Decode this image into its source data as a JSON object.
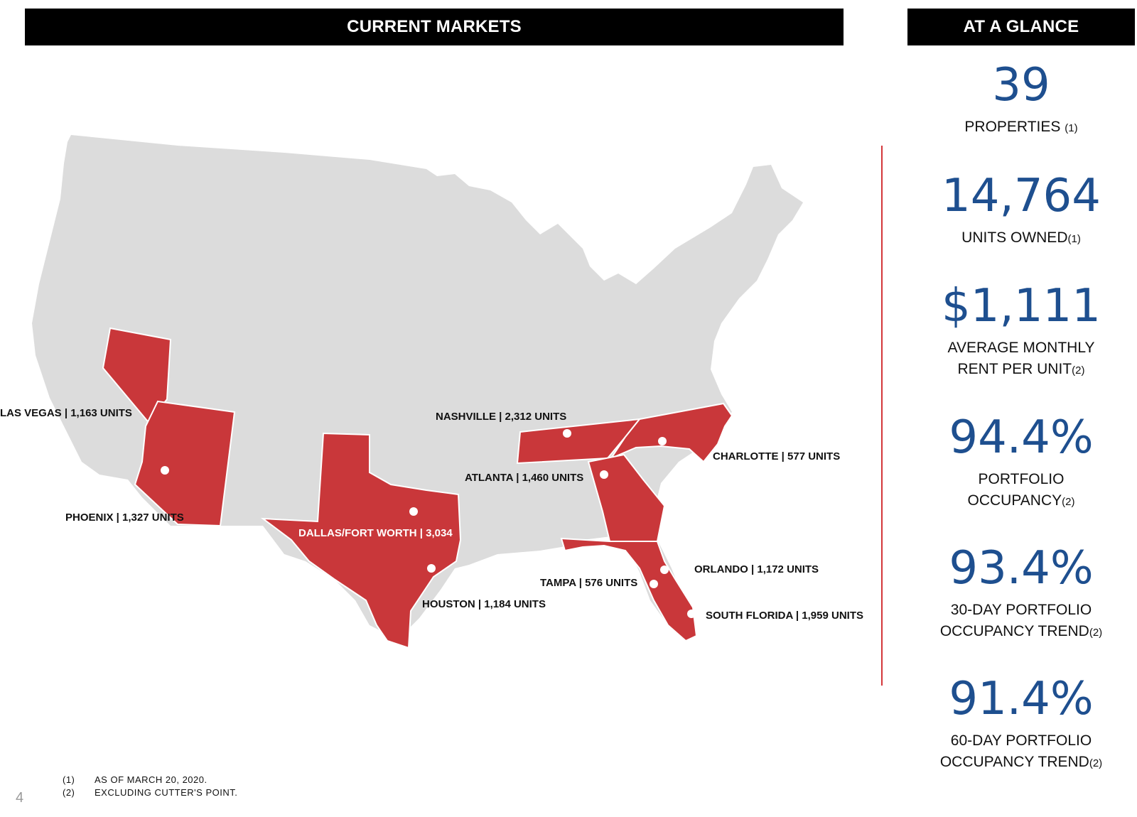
{
  "headers": {
    "markets": "CURRENT MARKETS",
    "glance": "AT A GLANCE"
  },
  "colors": {
    "highlight_state": "#c9373a",
    "base_map": "#dcdcdc",
    "stat_value": "#1e4f8f",
    "divider": "#d4363a"
  },
  "markets": [
    {
      "name": "LAS VEGAS",
      "text": "LAS VEGAS | 1,163 UNITS"
    },
    {
      "name": "PHOENIX",
      "text": "PHOENIX | 1,327 UNITS"
    },
    {
      "name": "DALLAS/FORT WORTH",
      "text": "DALLAS/FORT WORTH | 3,034"
    },
    {
      "name": "HOUSTON",
      "text": "HOUSTON | 1,184 UNITS"
    },
    {
      "name": "NASHVILLE",
      "text": "NASHVILLE | 2,312 UNITS"
    },
    {
      "name": "ATLANTA",
      "text": "ATLANTA | 1,460 UNITS"
    },
    {
      "name": "CHARLOTTE",
      "text": "CHARLOTTE | 577 UNITS"
    },
    {
      "name": "ORLANDO",
      "text": "ORLANDO | 1,172 UNITS"
    },
    {
      "name": "TAMPA",
      "text": "TAMPA | 576 UNITS"
    },
    {
      "name": "SOUTH FLORIDA",
      "text": "SOUTH FLORIDA | 1,959 UNITS"
    }
  ],
  "stats": [
    {
      "value": "39",
      "label": "PROPERTIES",
      "note": "(1)"
    },
    {
      "value": "14,764",
      "label": "UNITS OWNED",
      "note": "(1)"
    },
    {
      "value": "$1,111",
      "label_line1": "AVERAGE MONTHLY",
      "label": "RENT PER UNIT",
      "note": "(2)"
    },
    {
      "value": "94.4%",
      "label_line1": "PORTFOLIO",
      "label": "OCCUPANCY",
      "note": "(2)"
    },
    {
      "value": "93.4%",
      "label_line1": "30-DAY PORTFOLIO",
      "label": "OCCUPANCY TREND",
      "note": "(2)"
    },
    {
      "value": "91.4%",
      "label_line1": "60-DAY PORTFOLIO",
      "label": "OCCUPANCY TREND",
      "note": "(2)"
    }
  ],
  "footnotes": [
    {
      "num": "(1)",
      "text": "AS OF MARCH 20, 2020."
    },
    {
      "num": "(2)",
      "text": "EXCLUDING CUTTER'S POINT."
    }
  ],
  "page_number": "4"
}
